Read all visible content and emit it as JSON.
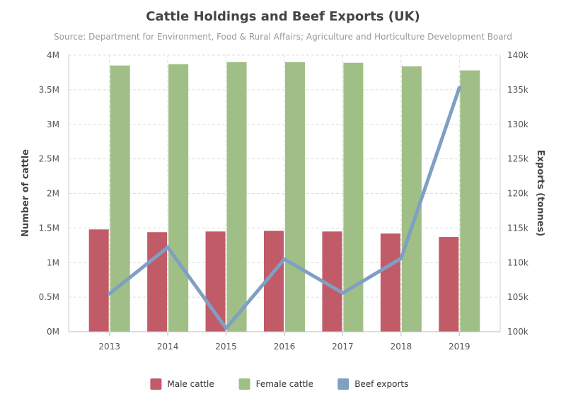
{
  "chart_data": {
    "type": "bar",
    "title": "Cattle Holdings and Beef Exports (UK)",
    "subtitle": "Source: Department for Environment, Food & Rural Affairs; Agriculture and Horticulture Development Board",
    "categories": [
      "2013",
      "2014",
      "2015",
      "2016",
      "2017",
      "2018",
      "2019"
    ],
    "y_left": {
      "label": "Number of cattle",
      "range": [
        0,
        4000000
      ],
      "ticks": [
        0,
        500000,
        1000000,
        1500000,
        2000000,
        2500000,
        3000000,
        3500000,
        4000000
      ],
      "tick_labels": [
        "0M",
        "0.5M",
        "1M",
        "1.5M",
        "2M",
        "2.5M",
        "3M",
        "3.5M",
        "4M"
      ]
    },
    "y_right": {
      "label": "Exports (tonnes)",
      "range": [
        100000,
        140000
      ],
      "ticks": [
        100000,
        105000,
        110000,
        115000,
        120000,
        125000,
        130000,
        135000,
        140000
      ],
      "tick_labels": [
        "100k",
        "105k",
        "110k",
        "115k",
        "120k",
        "125k",
        "130k",
        "135k",
        "140k"
      ]
    },
    "grid": true,
    "legend_position": "bottom-center",
    "series": [
      {
        "name": "Male cattle",
        "type": "bar",
        "axis": "left",
        "color": "#c25b68",
        "values": [
          1480000,
          1440000,
          1450000,
          1460000,
          1450000,
          1420000,
          1370000
        ]
      },
      {
        "name": "Female cattle",
        "type": "bar",
        "axis": "left",
        "color": "#a0bf86",
        "values": [
          3850000,
          3870000,
          3900000,
          3900000,
          3890000,
          3840000,
          3780000
        ]
      },
      {
        "name": "Beef exports",
        "type": "line",
        "axis": "right",
        "color": "#7f9fc3",
        "values": [
          105500,
          112200,
          100500,
          110500,
          105600,
          110600,
          135300
        ]
      }
    ]
  }
}
